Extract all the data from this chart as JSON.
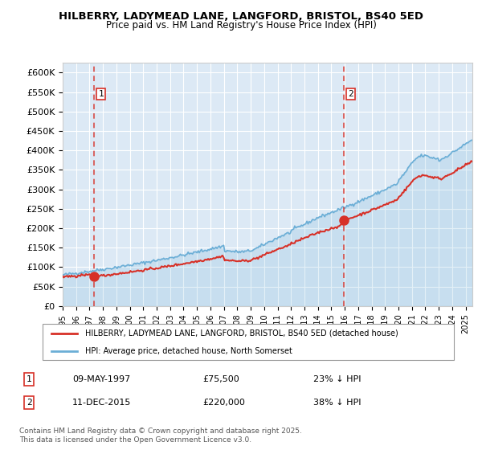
{
  "title": "HILBERRY, LADYMEAD LANE, LANGFORD, BRISTOL, BS40 5ED",
  "subtitle": "Price paid vs. HM Land Registry's House Price Index (HPI)",
  "legend_line1": "HILBERRY, LADYMEAD LANE, LANGFORD, BRISTOL, BS40 5ED (detached house)",
  "legend_line2": "HPI: Average price, detached house, North Somerset",
  "annotation1_label": "1",
  "annotation1_date": "09-MAY-1997",
  "annotation1_price": 75500,
  "annotation1_hpi": "23% ↓ HPI",
  "annotation2_label": "2",
  "annotation2_date": "11-DEC-2015",
  "annotation2_price": 220000,
  "annotation2_hpi": "38% ↓ HPI",
  "footer": "Contains HM Land Registry data © Crown copyright and database right 2025.\nThis data is licensed under the Open Government Licence v3.0.",
  "hpi_color": "#6baed6",
  "price_color": "#d73027",
  "dashed_line_color": "#d73027",
  "bg_color": "#dce9f5",
  "ylim": [
    0,
    625000
  ],
  "yticks": [
    0,
    50000,
    100000,
    150000,
    200000,
    250000,
    300000,
    350000,
    400000,
    450000,
    500000,
    550000,
    600000
  ],
  "year_start": 1995,
  "year_end": 2025,
  "sale1_year": 1997.35,
  "sale1_price": 75500,
  "sale2_year": 2015.94,
  "sale2_price": 220000
}
